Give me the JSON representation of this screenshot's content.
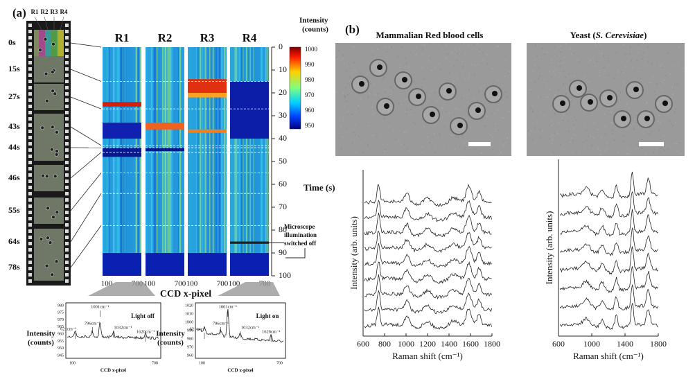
{
  "panel_a": {
    "label": "(a)",
    "frame_times": [
      "0s",
      "15s",
      "27s",
      "43s",
      "44s",
      "46s",
      "55s",
      "64s",
      "78s"
    ],
    "film_regions": [
      "R1",
      "R2",
      "R3",
      "R4"
    ],
    "heatmap_titles": [
      "R1",
      "R2",
      "R3",
      "R4"
    ],
    "colorbar_title": [
      "Intensity",
      "(counts)"
    ],
    "colorbar_ticks": [
      1000,
      990,
      980,
      970,
      960,
      950
    ],
    "time_ticks": [
      0,
      10,
      20,
      30,
      40,
      50,
      60,
      70,
      80,
      90,
      100
    ],
    "time_label": "Time (s)",
    "annotation": [
      "Microscope",
      "illumination",
      "switched off"
    ],
    "x_ticks": [
      100,
      700
    ],
    "x_label": "CCD x-pixel",
    "inset_left": {
      "title": "Light off",
      "y_label": [
        "Intensity",
        "(counts)"
      ],
      "y_ticks": [
        980,
        975,
        970,
        965,
        960,
        955,
        950,
        945
      ],
      "peaks": [
        "621cm⁻¹",
        "796cm⁻¹",
        "1001cm⁻¹",
        "1032cm⁻¹",
        "1620cm⁻¹"
      ],
      "x_ticks": [
        100,
        700
      ],
      "x_label": "CCD x-pixel"
    },
    "inset_right": {
      "title": "Light on",
      "y_label": [
        "Intensity",
        "(counts)"
      ],
      "y_ticks": [
        1020,
        1010,
        1000,
        990,
        980,
        970,
        960
      ],
      "peaks": [
        "621cm⁻¹",
        "796cm⁻¹",
        "1001cm⁻¹",
        "1032cm⁻¹",
        "1620cm⁻¹"
      ],
      "x_ticks": [
        100,
        700
      ],
      "x_label": "CCD x-pixel"
    }
  },
  "panel_b": {
    "label": "(b)",
    "left_title": "Mammalian Red blood cells",
    "right_title": {
      "prefix": "Yeast (",
      "species": "S. Cerevisiae",
      "suffix": ")"
    },
    "y_label": "Intensity (arb. units)",
    "x_label": "Raman shift (cm⁻¹)",
    "left_x_ticks": [
      600,
      800,
      1000,
      1200,
      1400,
      1600,
      1800
    ],
    "right_x_ticks": [
      600,
      1000,
      1400,
      1800
    ]
  }
}
